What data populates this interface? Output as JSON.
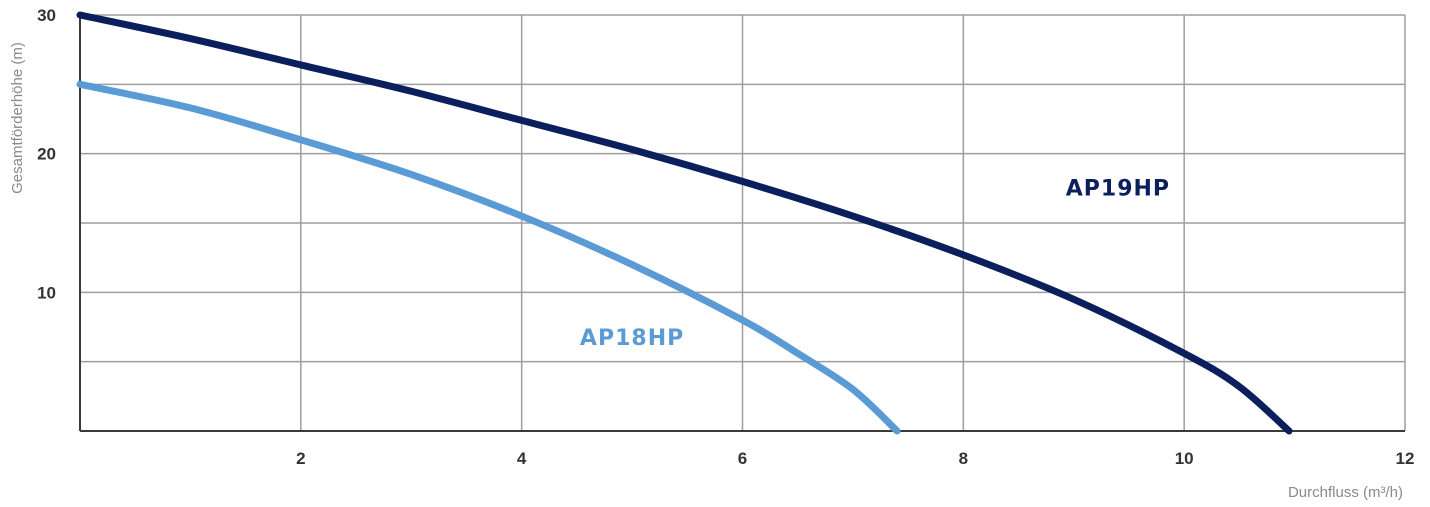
{
  "chart_data": {
    "type": "line",
    "xlabel": "Durchfluss",
    "xlabel_unit": "(m³/h)",
    "ylabel": "Gesamtförderhöhe (m)",
    "xlim": [
      0,
      12
    ],
    "ylim": [
      0,
      30
    ],
    "x_ticks": [
      2,
      4,
      6,
      8,
      10,
      12
    ],
    "x_tick_labels": [
      "2",
      "4",
      "6",
      "8",
      "10",
      "12"
    ],
    "y_ticks": [
      10,
      20,
      30
    ],
    "y_tick_labels": [
      "10",
      "20",
      "30"
    ],
    "x_grid": [
      0,
      2,
      4,
      6,
      8,
      10,
      12
    ],
    "y_grid": [
      0,
      5,
      10,
      15,
      20,
      25,
      30
    ],
    "grid": true,
    "series": [
      {
        "name": "AP19HP",
        "color": "#0b1f5c",
        "x": [
          0,
          1,
          2,
          3,
          4,
          5,
          6,
          7,
          8,
          9,
          10,
          10.5,
          10.95
        ],
        "y": [
          30,
          28.3,
          26.4,
          24.5,
          22.4,
          20.3,
          18.0,
          15.5,
          12.7,
          9.5,
          5.6,
          3.2,
          0
        ]
      },
      {
        "name": "AP18HP",
        "color": "#5b9bd5",
        "x": [
          0,
          1,
          2,
          3,
          4,
          5,
          6,
          6.5,
          7,
          7.4
        ],
        "y": [
          25,
          23.3,
          21.0,
          18.5,
          15.5,
          12.0,
          8.0,
          5.6,
          3.0,
          0
        ]
      }
    ],
    "annotations": [
      {
        "text": "AP19HP",
        "x": 9.4,
        "y": 17,
        "color": "#0b1f5c"
      },
      {
        "text": "AP18HP",
        "x": 5.0,
        "y": 6.2,
        "color": "#5b9bd5"
      }
    ]
  }
}
